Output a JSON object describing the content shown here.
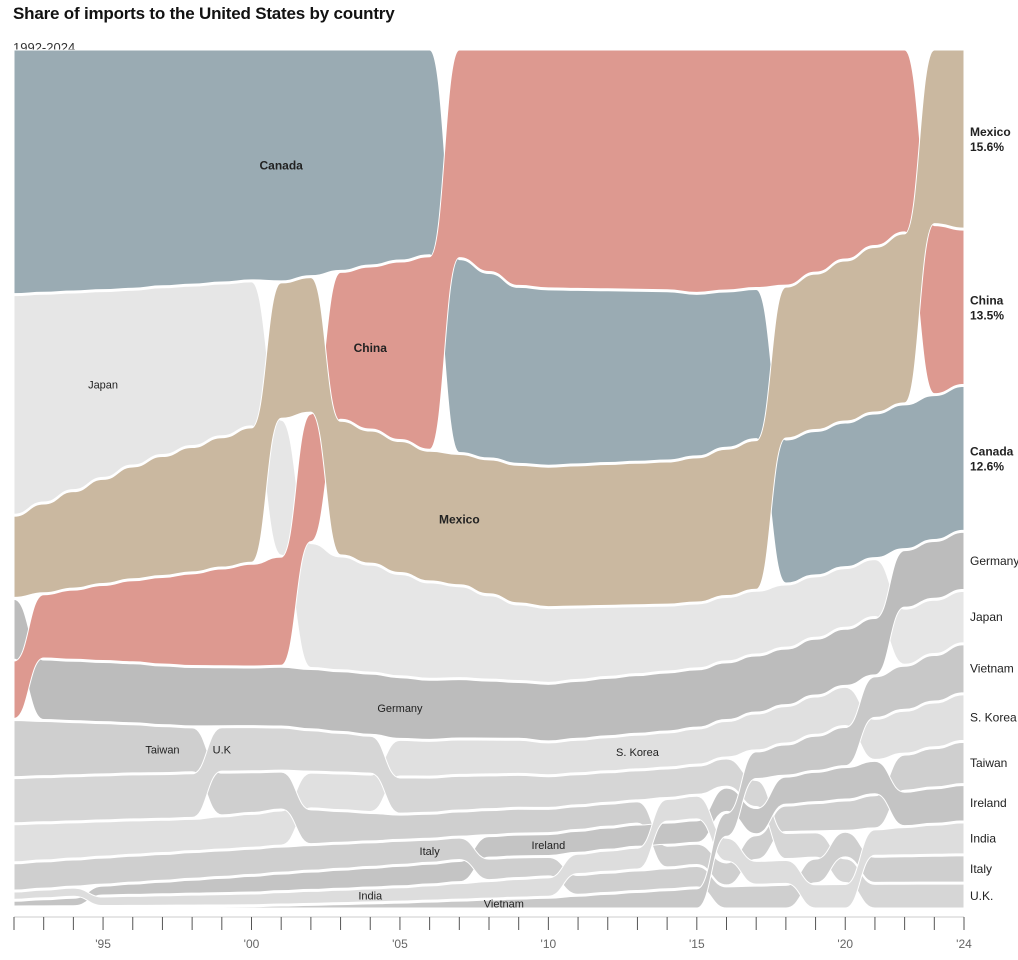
{
  "chart_data": {
    "type": "area",
    "title": "Share of imports to the United States by country",
    "subtitle": "1992-2024",
    "x_tick_labels": [
      "'95",
      "'00",
      "'05",
      "'10",
      "'15",
      "'20",
      "'24"
    ],
    "x_tick_years": [
      1995,
      2000,
      2005,
      2010,
      2015,
      2020,
      2024
    ],
    "x_range": [
      1992,
      2024
    ],
    "colors": {
      "Canada": "#9aabb3",
      "China": "#dd9990",
      "Mexico": "#cab8a0",
      "Japan": "#e6e6e6",
      "Germany": "#bcbcbc",
      "S. Korea": "#e0e0e0",
      "Taiwan": "#cfcfcf",
      "U.K.": "#d6d6d6",
      "Ireland": "#c4c4c4",
      "Italy": "#cfcfcf",
      "India": "#dddddd",
      "Vietnam": "#c8c8c8"
    },
    "order_top_to_bottom": [
      "Mexico",
      "China",
      "Canada",
      "Germany",
      "Japan",
      "Vietnam",
      "S. Korea",
      "Taiwan",
      "Ireland",
      "India",
      "Italy",
      "U.K."
    ],
    "series": [
      {
        "name": "Canada",
        "highlight": true,
        "in_chart_label": "Canada",
        "years": [
          1992,
          2001,
          2006,
          2007,
          2009,
          2014,
          2018,
          2024
        ],
        "values": [
          20.4,
          19.0,
          16.9,
          15.7,
          14.2,
          14.8,
          12.9,
          12.6
        ]
      },
      {
        "name": "China",
        "highlight": true,
        "in_chart_label": "China",
        "years": [
          1992,
          1997,
          2001,
          2003,
          2006,
          2007,
          2009,
          2015,
          2018,
          2024
        ],
        "values": [
          4.8,
          7.2,
          8.9,
          12.1,
          15.9,
          16.9,
          19.0,
          21.5,
          21.2,
          13.5
        ]
      },
      {
        "name": "Mexico",
        "highlight": true,
        "in_chart_label": "Mexico",
        "years": [
          1992,
          1997,
          2000,
          2003,
          2007,
          2009,
          2014,
          2018,
          2024
        ],
        "values": [
          6.8,
          9.9,
          11.2,
          11.0,
          10.6,
          11.1,
          12.5,
          13.6,
          15.6
        ]
      },
      {
        "name": "Japan",
        "in_chart_label": "Japan",
        "years": [
          1992,
          1996,
          2000,
          2003,
          2007,
          2009,
          2014,
          2018,
          2024
        ],
        "values": [
          18.3,
          14.5,
          12.0,
          9.3,
          7.4,
          6.1,
          5.7,
          5.6,
          4.5
        ]
      },
      {
        "name": "Germany",
        "in_chart_label": "Germany",
        "years": [
          1992,
          2000,
          2005,
          2009,
          2014,
          2018,
          2024
        ],
        "values": [
          5.0,
          4.8,
          5.0,
          4.5,
          5.1,
          5.0,
          5.0
        ]
      },
      {
        "name": "S. Korea",
        "in_chart_label": "S. Korea",
        "years": [
          1992,
          1998,
          2004,
          2010,
          2015,
          2020,
          2024
        ],
        "values": [
          3.1,
          2.6,
          3.0,
          2.6,
          3.1,
          3.4,
          4.0
        ]
      },
      {
        "name": "Taiwan",
        "in_chart_label": "Taiwan",
        "years": [
          1992,
          2000,
          2005,
          2010,
          2015,
          2020,
          2024
        ],
        "values": [
          4.7,
          3.3,
          2.0,
          1.9,
          1.8,
          2.6,
          3.6
        ]
      },
      {
        "name": "U.K.",
        "in_chart_label": "U.K",
        "years": [
          1992,
          2000,
          2005,
          2010,
          2015,
          2020,
          2024
        ],
        "values": [
          3.7,
          3.6,
          2.9,
          2.5,
          2.5,
          2.1,
          2.1
        ]
      },
      {
        "name": "Ireland",
        "in_chart_label": "Ireland",
        "years": [
          1992,
          2000,
          2005,
          2010,
          2015,
          2020,
          2024
        ],
        "values": [
          0.4,
          1.3,
          1.6,
          1.7,
          1.9,
          2.8,
          3.1
        ]
      },
      {
        "name": "Italy",
        "in_chart_label": "Italy",
        "years": [
          1992,
          2000,
          2005,
          2010,
          2015,
          2020,
          2024
        ],
        "values": [
          2.2,
          2.1,
          1.9,
          1.5,
          1.8,
          2.2,
          2.3
        ]
      },
      {
        "name": "India",
        "in_chart_label": "India",
        "years": [
          1992,
          2000,
          2005,
          2010,
          2015,
          2020,
          2024
        ],
        "values": [
          0.6,
          0.9,
          1.1,
          1.5,
          2.0,
          2.1,
          2.7
        ]
      },
      {
        "name": "Vietnam",
        "in_chart_label": "Vietnam",
        "years": [
          1992,
          2000,
          2005,
          2010,
          2015,
          2020,
          2024
        ],
        "values": [
          0.0,
          0.1,
          0.4,
          0.8,
          1.7,
          3.4,
          4.2
        ]
      }
    ],
    "end_labels": [
      {
        "name": "Mexico",
        "value": "15.6%",
        "bold": true
      },
      {
        "name": "China",
        "value": "13.5%",
        "bold": true
      },
      {
        "name": "Canada",
        "value": "12.6%",
        "bold": true
      },
      {
        "name": "Germany",
        "value": "",
        "bold": false
      },
      {
        "name": "Japan",
        "value": "",
        "bold": false
      },
      {
        "name": "Vietnam",
        "value": "",
        "bold": false
      },
      {
        "name": "S. Korea",
        "value": "",
        "bold": false
      },
      {
        "name": "Taiwan",
        "value": "",
        "bold": false
      },
      {
        "name": "Ireland",
        "value": "",
        "bold": false
      },
      {
        "name": "India",
        "value": "",
        "bold": false
      },
      {
        "name": "Italy",
        "value": "",
        "bold": false
      },
      {
        "name": "U.K.",
        "value": "",
        "bold": false
      }
    ],
    "in_chart_label_years": {
      "Canada": 2001,
      "China": 2004,
      "Mexico": 2007,
      "Japan": 1995,
      "Germany": 2005,
      "S. Korea": 2013,
      "Taiwan": 1997,
      "U.K.": 1999,
      "Ireland": 2010,
      "Italy": 2006,
      "India": 2004,
      "Vietnam": 2008.5
    }
  }
}
